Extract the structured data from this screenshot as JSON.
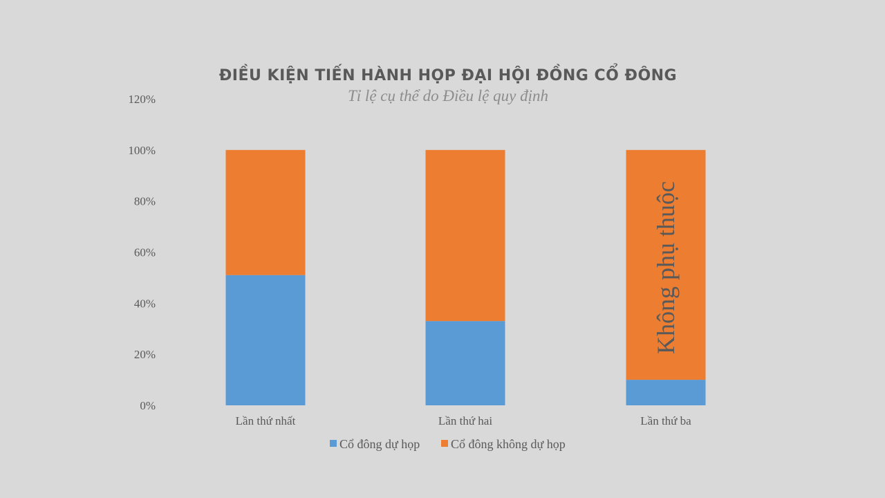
{
  "chart_data": {
    "type": "bar",
    "stacked": true,
    "title": "ĐIỀU KIỆN TIẾN HÀNH HỌP ĐẠI HỘI ĐỒNG CỔ ĐÔNG",
    "subtitle": "Tỉ lệ cụ thể do Điều lệ quy định",
    "categories": [
      "Lần thứ nhất",
      "Lần thứ hai",
      "Lần thứ ba"
    ],
    "series": [
      {
        "name": "Cổ đông dự họp",
        "color": "#5b9bd5",
        "values": [
          0.51,
          0.33,
          0.1
        ]
      },
      {
        "name": "Cổ đông không dự họp",
        "color": "#ed7d31",
        "values": [
          0.49,
          0.67,
          0.9
        ]
      }
    ],
    "ylim": [
      0,
      1.2
    ],
    "yticks": [
      "0%",
      "20%",
      "40%",
      "60%",
      "80%",
      "100%",
      "120%"
    ],
    "ytick_values": [
      0,
      0.2,
      0.4,
      0.6,
      0.8,
      1.0,
      1.2
    ],
    "grid": false,
    "legend_position": "bottom",
    "annotations": [
      {
        "category": "Lần thứ ba",
        "text": "Không phụ thuộc"
      }
    ]
  }
}
